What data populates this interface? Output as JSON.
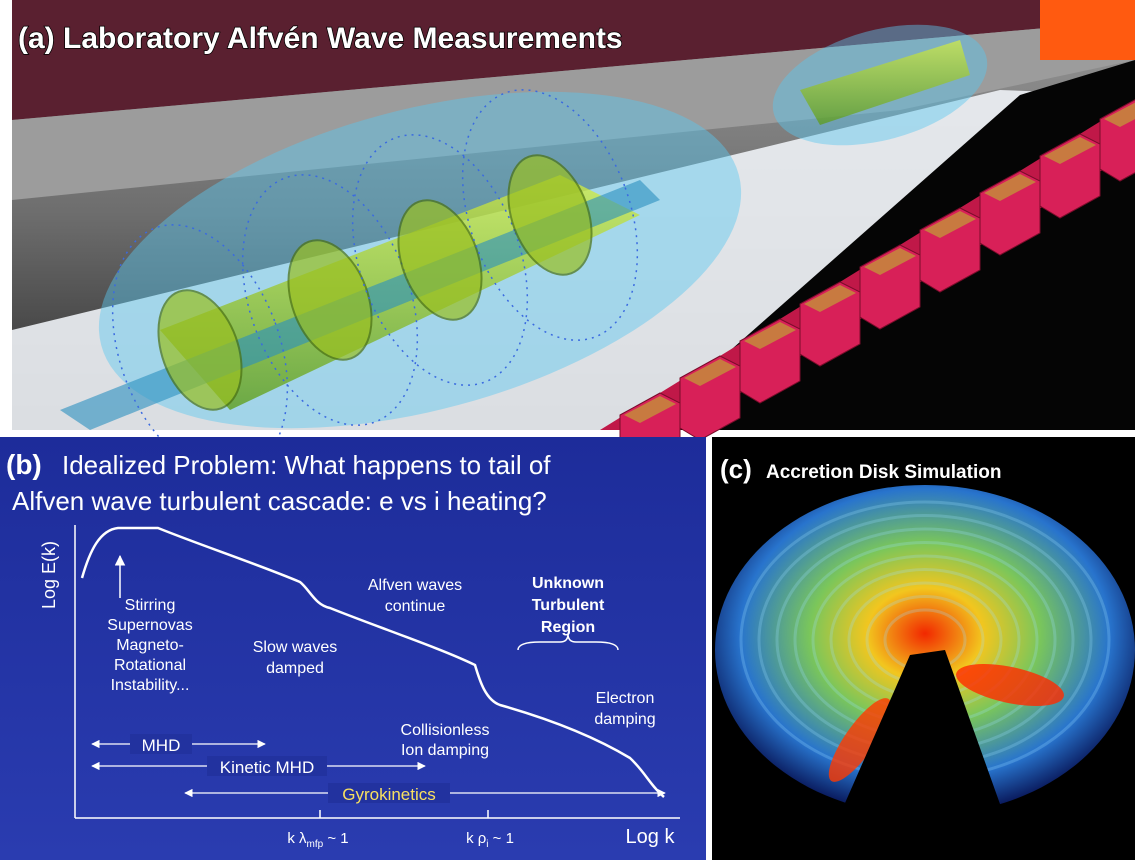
{
  "panel_a": {
    "title": "(a) Laboratory Alfvén Wave Measurements"
  },
  "panel_b": {
    "label": "(b)",
    "title_lines": [
      "Idealized Problem: What happens to tail of",
      "Alfven wave turbulent cascade: e vs i heating?"
    ],
    "y_axis_label": "Log E(k)",
    "x_axis_label": "Log k",
    "x_ticks": [
      {
        "main": "k λ",
        "sub": "mfp",
        "tail": " ~ 1"
      },
      {
        "main": "k ρ",
        "sub": "i",
        "tail": " ~ 1"
      }
    ],
    "annotations": [
      {
        "lines": [
          "Stirring",
          "Supernovas",
          "Magneto-",
          "Rotational",
          "Instability..."
        ]
      },
      {
        "lines": [
          "Slow waves",
          "damped"
        ]
      },
      {
        "lines": [
          "Alfven waves",
          "continue"
        ]
      },
      {
        "lines": [
          "Unknown",
          "Turbulent",
          "Region"
        ]
      },
      {
        "lines": [
          "Collisionless",
          "Ion damping"
        ]
      },
      {
        "lines": [
          "Electron",
          "damping"
        ]
      }
    ],
    "ranges": [
      "MHD",
      "Kinetic MHD",
      "Gyrokinetics"
    ]
  },
  "panel_c": {
    "label": "(c)",
    "title": "Accretion Disk Simulation"
  }
}
